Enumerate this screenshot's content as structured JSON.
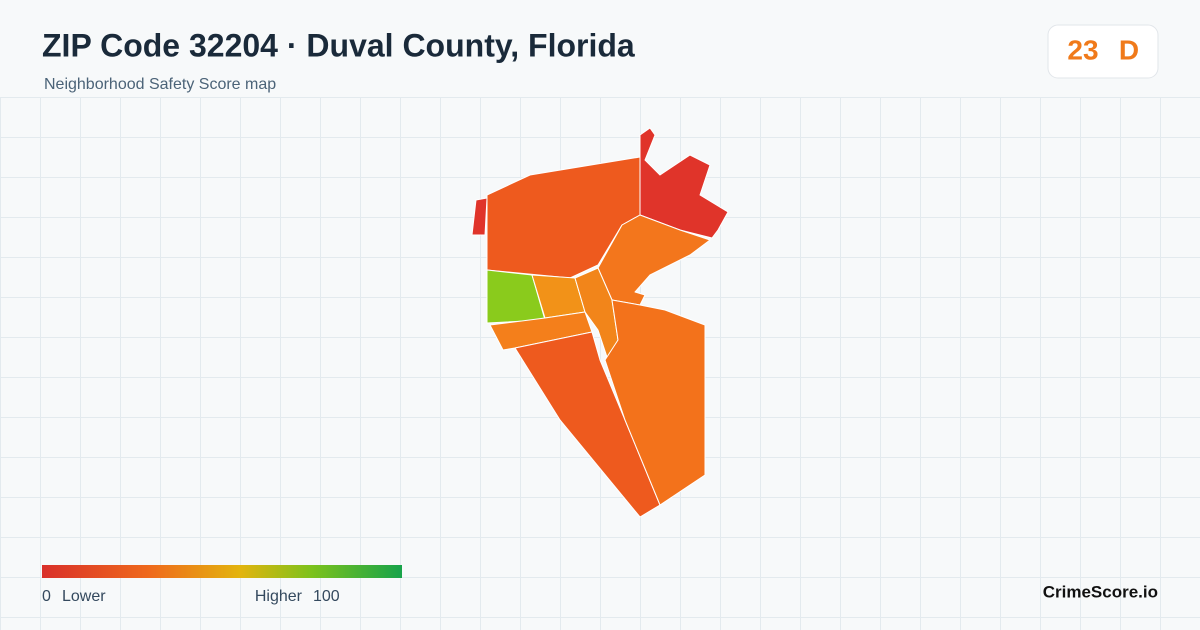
{
  "header": {
    "title": "ZIP Code 32204 · Duval County, Florida",
    "subtitle": "Neighborhood Safety Score map"
  },
  "score": {
    "value": 23,
    "grade": "D"
  },
  "legend": {
    "min": 0,
    "min_label": "Lower",
    "max_label": "Higher",
    "max": 100
  },
  "brand": "CrimeScore.io"
}
